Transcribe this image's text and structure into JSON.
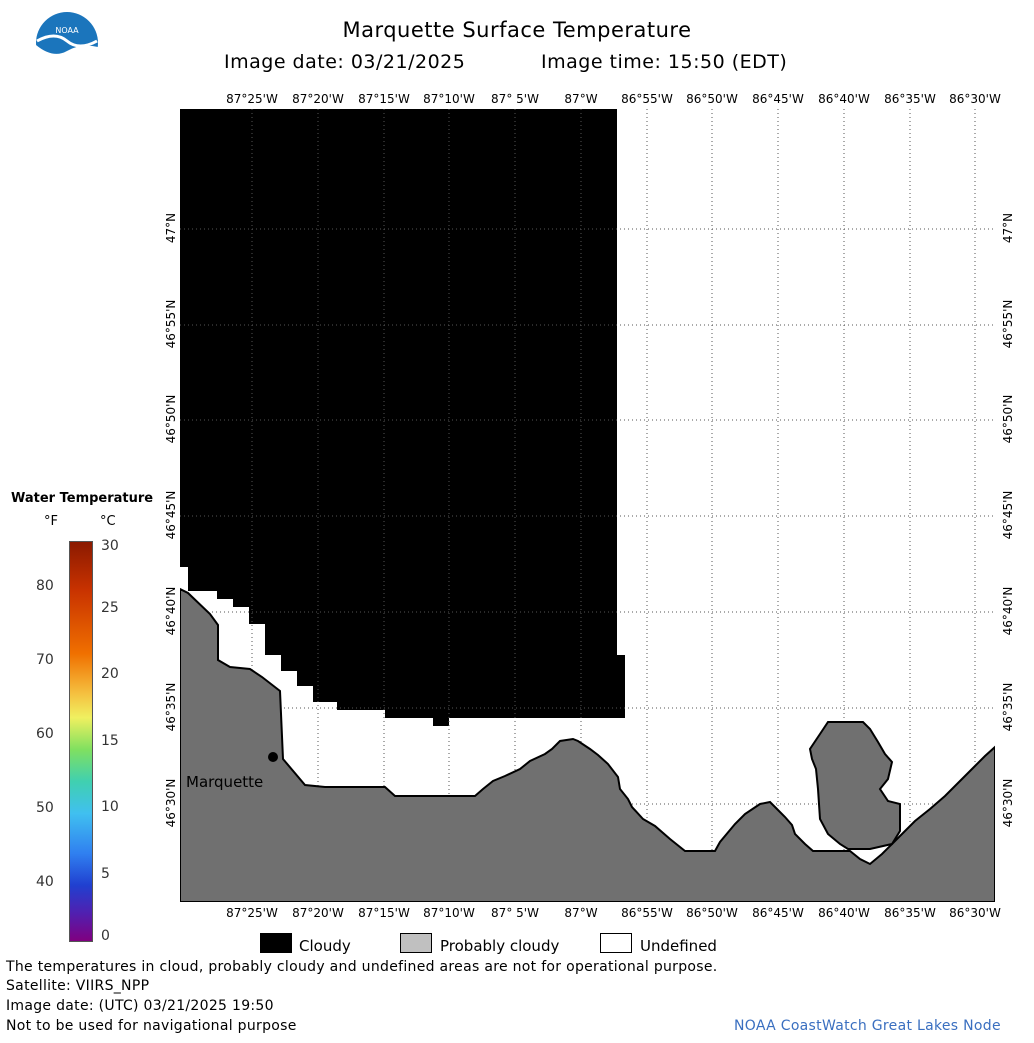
{
  "header": {
    "title": "Marquette Surface Temperature",
    "image_date_label": "Image date: 03/21/2025",
    "image_time_label": "Image time: 15:50 (EDT)",
    "logo_text": "NOAA"
  },
  "map": {
    "lon_labels": [
      "87°25'W",
      "87°20'W",
      "87°15'W",
      "87°10'W",
      "87° 5'W",
      "87°W",
      "86°55'W",
      "86°50'W",
      "86°45'W",
      "86°40'W",
      "86°35'W",
      "86°30'W"
    ],
    "lat_labels": [
      "47°N",
      "46°55'N",
      "46°50'N",
      "46°45'N",
      "46°40'N",
      "46°35'N",
      "46°30'N"
    ],
    "city_label": "Marquette",
    "colors": {
      "land": "#707070",
      "cloud": "#000000",
      "undefined": "#ffffff",
      "grid": "#555555"
    }
  },
  "colorbar": {
    "title": "Water Temperature",
    "unit_f": "°F",
    "unit_c": "°C",
    "f_ticks": [
      "80",
      "70",
      "60",
      "50",
      "40"
    ],
    "c_ticks": [
      "30",
      "25",
      "20",
      "15",
      "10",
      "5",
      "0"
    ]
  },
  "legend": {
    "cloudy": "Cloudy",
    "probably_cloudy": "Probably cloudy",
    "undefined": "Undefined"
  },
  "footer": {
    "line1": "The temperatures in cloud, probably cloudy and undefined areas are not for operational purpose.",
    "line2": "Satellite: VIIRS_NPP",
    "line3": "Image date: (UTC) 03/21/2025  19:50",
    "line4": "Not to be used for navigational purpose",
    "credit": "NOAA CoastWatch Great Lakes Node"
  }
}
